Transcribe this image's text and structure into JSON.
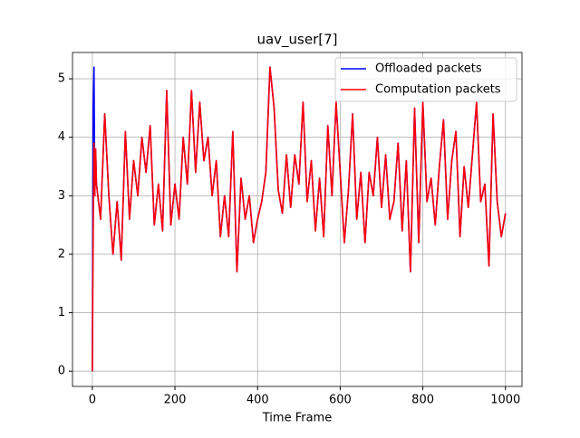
{
  "chart_data": {
    "type": "line",
    "title": "uav_user[7]",
    "x_label": "Time Frame",
    "x": [
      0,
      2,
      4,
      6,
      8,
      10,
      20,
      30,
      40,
      50,
      60,
      70,
      80,
      90,
      100,
      110,
      120,
      130,
      140,
      150,
      160,
      170,
      180,
      190,
      200,
      210,
      220,
      230,
      240,
      250,
      260,
      270,
      280,
      290,
      300,
      310,
      320,
      330,
      340,
      350,
      360,
      370,
      380,
      390,
      400,
      410,
      420,
      430,
      440,
      450,
      460,
      470,
      480,
      490,
      500,
      510,
      520,
      530,
      540,
      550,
      560,
      570,
      580,
      590,
      600,
      610,
      620,
      630,
      640,
      650,
      660,
      670,
      680,
      690,
      700,
      710,
      720,
      730,
      740,
      750,
      760,
      770,
      780,
      790,
      800,
      810,
      820,
      830,
      840,
      850,
      860,
      870,
      880,
      890,
      900,
      910,
      920,
      930,
      940,
      950,
      960,
      970,
      980,
      990,
      1000
    ],
    "series": [
      {
        "name": "Offloaded packets",
        "color": "#0000ff",
        "values": [
          0,
          4.5,
          5.2,
          3.0,
          3.8,
          3.2,
          2.6,
          4.4,
          3.0,
          2.0,
          2.9,
          1.9,
          4.1,
          2.6,
          3.6,
          3.0,
          4.0,
          3.4,
          4.2,
          2.5,
          3.2,
          2.4,
          4.8,
          2.5,
          3.2,
          2.6,
          4.0,
          3.2,
          4.8,
          3.4,
          4.6,
          3.6,
          4.0,
          3.0,
          3.6,
          2.3,
          3.0,
          2.3,
          4.1,
          1.7,
          3.3,
          2.6,
          3.0,
          2.2,
          2.6,
          2.9,
          3.4,
          5.2,
          4.5,
          3.1,
          2.7,
          3.7,
          2.8,
          3.7,
          3.2,
          4.6,
          2.9,
          3.6,
          2.4,
          3.3,
          2.3,
          4.2,
          3.0,
          4.6,
          3.4,
          2.2,
          3.1,
          4.4,
          2.6,
          3.4,
          2.2,
          3.4,
          3.0,
          4.0,
          2.8,
          3.7,
          2.6,
          2.9,
          3.9,
          2.4,
          3.6,
          1.7,
          4.5,
          2.2,
          4.6,
          2.9,
          3.3,
          2.5,
          3.5,
          4.3,
          2.6,
          3.6,
          4.1,
          2.3,
          3.5,
          2.8,
          3.7,
          4.6,
          2.9,
          3.2,
          1.8,
          4.4,
          2.9,
          2.3,
          2.7
        ]
      },
      {
        "name": "Computation packets",
        "color": "#ff0000",
        "values": [
          0,
          2.3,
          3.9,
          3.0,
          3.8,
          3.2,
          2.6,
          4.4,
          3.0,
          2.0,
          2.9,
          1.9,
          4.1,
          2.6,
          3.6,
          3.0,
          4.0,
          3.4,
          4.2,
          2.5,
          3.2,
          2.4,
          4.8,
          2.5,
          3.2,
          2.6,
          4.0,
          3.2,
          4.8,
          3.4,
          4.6,
          3.6,
          4.0,
          3.0,
          3.6,
          2.3,
          3.0,
          2.3,
          4.1,
          1.7,
          3.3,
          2.6,
          3.0,
          2.2,
          2.6,
          2.9,
          3.4,
          5.2,
          4.5,
          3.1,
          2.7,
          3.7,
          2.8,
          3.7,
          3.2,
          4.6,
          2.9,
          3.6,
          2.4,
          3.3,
          2.3,
          4.2,
          3.0,
          4.6,
          3.4,
          2.2,
          3.1,
          4.4,
          2.6,
          3.4,
          2.2,
          3.4,
          3.0,
          4.0,
          2.8,
          3.7,
          2.6,
          2.9,
          3.9,
          2.4,
          3.6,
          1.7,
          4.5,
          2.2,
          4.6,
          2.9,
          3.3,
          2.5,
          3.5,
          4.3,
          2.6,
          3.6,
          4.1,
          2.3,
          3.5,
          2.8,
          3.7,
          4.6,
          2.9,
          3.2,
          1.8,
          4.4,
          2.9,
          2.3,
          2.7
        ]
      }
    ],
    "xlim": [
      -48,
      1040
    ],
    "ylim": [
      -0.26,
      5.45
    ],
    "xticks": [
      0,
      200,
      400,
      600,
      800,
      1000
    ],
    "yticks": [
      0,
      1,
      2,
      3,
      4,
      5
    ],
    "grid": true,
    "legend": "upper right"
  }
}
